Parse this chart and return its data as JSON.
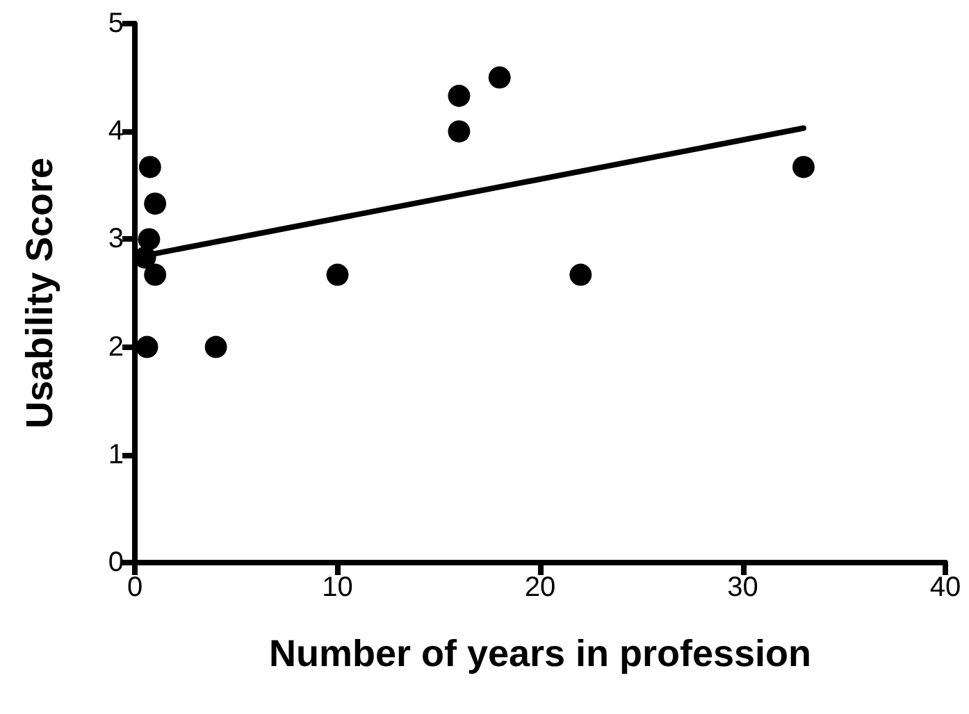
{
  "chart_data": {
    "type": "scatter",
    "xlabel": "Number of years in profession",
    "ylabel": "Usability Score",
    "xlim": [
      0,
      40
    ],
    "ylim": [
      0,
      5
    ],
    "xticks": [
      0,
      10,
      20,
      30,
      40
    ],
    "yticks": [
      0,
      1,
      2,
      3,
      4,
      5
    ],
    "grid": false,
    "marker": "circle",
    "series": [
      {
        "color": "#000000",
        "x": [
          0.75,
          1,
          0.7,
          0.5,
          1,
          0.6,
          4,
          10,
          16,
          16,
          18,
          22,
          33
        ],
        "values": [
          3.67,
          3.33,
          3,
          2.83,
          2.67,
          2,
          2,
          2.67,
          4.33,
          4,
          4.5,
          2.67,
          3.67
        ]
      },
      {
        "type": "line",
        "color": "#000000",
        "x": [
          0,
          33
        ],
        "values": [
          2.83,
          4.03
        ],
        "marker": "none",
        "line_style": "solid"
      }
    ]
  }
}
